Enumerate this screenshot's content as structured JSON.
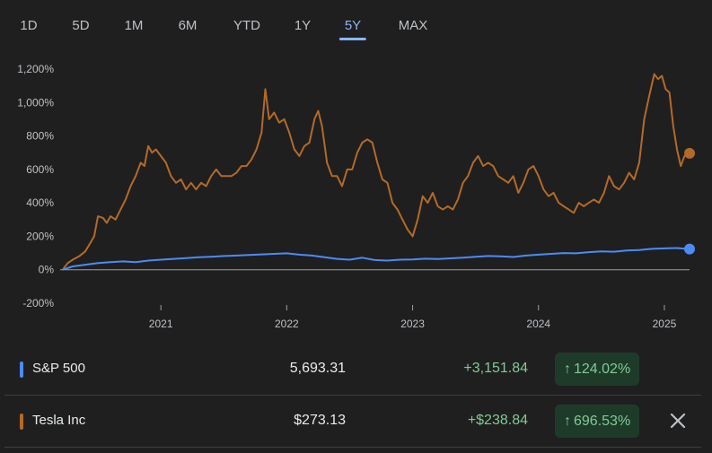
{
  "tabs": [
    "1D",
    "5D",
    "1M",
    "6M",
    "YTD",
    "1Y",
    "5Y",
    "MAX"
  ],
  "active_tab": "5Y",
  "chart_data": {
    "type": "line",
    "x_tick_labels": [
      "2021",
      "2022",
      "2023",
      "2024",
      "2025"
    ],
    "y_tick_labels": [
      "1,200%",
      "1,000%",
      "800%",
      "600%",
      "400%",
      "200%",
      "0%",
      "-200%"
    ],
    "ylim": [
      -200,
      1200
    ],
    "xlim": [
      2020.2,
      2025.2
    ],
    "series": [
      {
        "name": "Tesla Inc",
        "color": "#b36a28",
        "points": [
          [
            2020.22,
            0
          ],
          [
            2020.26,
            40
          ],
          [
            2020.3,
            60
          ],
          [
            2020.35,
            80
          ],
          [
            2020.4,
            110
          ],
          [
            2020.44,
            160
          ],
          [
            2020.47,
            200
          ],
          [
            2020.5,
            320
          ],
          [
            2020.54,
            310
          ],
          [
            2020.57,
            280
          ],
          [
            2020.6,
            320
          ],
          [
            2020.64,
            300
          ],
          [
            2020.68,
            360
          ],
          [
            2020.72,
            420
          ],
          [
            2020.76,
            500
          ],
          [
            2020.8,
            560
          ],
          [
            2020.84,
            640
          ],
          [
            2020.87,
            620
          ],
          [
            2020.9,
            740
          ],
          [
            2020.93,
            700
          ],
          [
            2020.96,
            720
          ],
          [
            2021.0,
            680
          ],
          [
            2021.04,
            640
          ],
          [
            2021.08,
            560
          ],
          [
            2021.12,
            520
          ],
          [
            2021.16,
            540
          ],
          [
            2021.2,
            480
          ],
          [
            2021.24,
            520
          ],
          [
            2021.28,
            480
          ],
          [
            2021.32,
            520
          ],
          [
            2021.36,
            500
          ],
          [
            2021.4,
            560
          ],
          [
            2021.44,
            600
          ],
          [
            2021.48,
            560
          ],
          [
            2021.52,
            560
          ],
          [
            2021.56,
            560
          ],
          [
            2021.6,
            580
          ],
          [
            2021.64,
            620
          ],
          [
            2021.68,
            620
          ],
          [
            2021.72,
            660
          ],
          [
            2021.76,
            720
          ],
          [
            2021.8,
            820
          ],
          [
            2021.83,
            1080
          ],
          [
            2021.86,
            900
          ],
          [
            2021.9,
            940
          ],
          [
            2021.94,
            880
          ],
          [
            2021.98,
            900
          ],
          [
            2022.02,
            820
          ],
          [
            2022.06,
            720
          ],
          [
            2022.1,
            680
          ],
          [
            2022.14,
            740
          ],
          [
            2022.18,
            760
          ],
          [
            2022.22,
            900
          ],
          [
            2022.25,
            950
          ],
          [
            2022.28,
            860
          ],
          [
            2022.32,
            640
          ],
          [
            2022.36,
            560
          ],
          [
            2022.4,
            560
          ],
          [
            2022.44,
            500
          ],
          [
            2022.48,
            600
          ],
          [
            2022.52,
            600
          ],
          [
            2022.56,
            700
          ],
          [
            2022.6,
            760
          ],
          [
            2022.64,
            780
          ],
          [
            2022.68,
            760
          ],
          [
            2022.72,
            640
          ],
          [
            2022.76,
            540
          ],
          [
            2022.8,
            520
          ],
          [
            2022.84,
            400
          ],
          [
            2022.88,
            360
          ],
          [
            2022.92,
            300
          ],
          [
            2022.96,
            240
          ],
          [
            2023.0,
            200
          ],
          [
            2023.04,
            300
          ],
          [
            2023.08,
            440
          ],
          [
            2023.12,
            400
          ],
          [
            2023.16,
            460
          ],
          [
            2023.2,
            380
          ],
          [
            2023.24,
            360
          ],
          [
            2023.28,
            380
          ],
          [
            2023.32,
            360
          ],
          [
            2023.36,
            420
          ],
          [
            2023.4,
            520
          ],
          [
            2023.44,
            560
          ],
          [
            2023.48,
            640
          ],
          [
            2023.52,
            680
          ],
          [
            2023.56,
            620
          ],
          [
            2023.6,
            640
          ],
          [
            2023.64,
            620
          ],
          [
            2023.68,
            560
          ],
          [
            2023.72,
            540
          ],
          [
            2023.76,
            520
          ],
          [
            2023.8,
            560
          ],
          [
            2023.84,
            460
          ],
          [
            2023.88,
            520
          ],
          [
            2023.92,
            600
          ],
          [
            2023.96,
            620
          ],
          [
            2024.0,
            560
          ],
          [
            2024.04,
            480
          ],
          [
            2024.08,
            440
          ],
          [
            2024.12,
            460
          ],
          [
            2024.16,
            400
          ],
          [
            2024.2,
            380
          ],
          [
            2024.24,
            360
          ],
          [
            2024.28,
            340
          ],
          [
            2024.32,
            400
          ],
          [
            2024.36,
            380
          ],
          [
            2024.4,
            400
          ],
          [
            2024.44,
            420
          ],
          [
            2024.48,
            400
          ],
          [
            2024.52,
            460
          ],
          [
            2024.56,
            560
          ],
          [
            2024.6,
            500
          ],
          [
            2024.64,
            480
          ],
          [
            2024.68,
            520
          ],
          [
            2024.72,
            580
          ],
          [
            2024.76,
            540
          ],
          [
            2024.8,
            640
          ],
          [
            2024.84,
            900
          ],
          [
            2024.88,
            1040
          ],
          [
            2024.92,
            1170
          ],
          [
            2024.95,
            1140
          ],
          [
            2024.98,
            1160
          ],
          [
            2025.01,
            1080
          ],
          [
            2025.04,
            1060
          ],
          [
            2025.07,
            860
          ],
          [
            2025.1,
            720
          ],
          [
            2025.13,
            620
          ],
          [
            2025.16,
            680
          ],
          [
            2025.2,
            696.53
          ]
        ]
      },
      {
        "name": "S&P 500",
        "color": "#4c8bf5",
        "points": [
          [
            2020.22,
            0
          ],
          [
            2020.3,
            20
          ],
          [
            2020.4,
            30
          ],
          [
            2020.5,
            40
          ],
          [
            2020.6,
            45
          ],
          [
            2020.7,
            50
          ],
          [
            2020.8,
            45
          ],
          [
            2020.9,
            55
          ],
          [
            2021.0,
            60
          ],
          [
            2021.1,
            65
          ],
          [
            2021.2,
            70
          ],
          [
            2021.3,
            75
          ],
          [
            2021.4,
            78
          ],
          [
            2021.5,
            82
          ],
          [
            2021.6,
            85
          ],
          [
            2021.7,
            88
          ],
          [
            2021.8,
            92
          ],
          [
            2021.9,
            95
          ],
          [
            2022.0,
            98
          ],
          [
            2022.1,
            90
          ],
          [
            2022.2,
            85
          ],
          [
            2022.3,
            75
          ],
          [
            2022.4,
            65
          ],
          [
            2022.5,
            60
          ],
          [
            2022.6,
            72
          ],
          [
            2022.7,
            58
          ],
          [
            2022.8,
            55
          ],
          [
            2022.9,
            60
          ],
          [
            2023.0,
            62
          ],
          [
            2023.1,
            66
          ],
          [
            2023.2,
            64
          ],
          [
            2023.3,
            68
          ],
          [
            2023.4,
            72
          ],
          [
            2023.5,
            78
          ],
          [
            2023.6,
            82
          ],
          [
            2023.7,
            80
          ],
          [
            2023.8,
            76
          ],
          [
            2023.9,
            85
          ],
          [
            2024.0,
            90
          ],
          [
            2024.1,
            95
          ],
          [
            2024.2,
            100
          ],
          [
            2024.3,
            98
          ],
          [
            2024.4,
            105
          ],
          [
            2024.5,
            110
          ],
          [
            2024.6,
            108
          ],
          [
            2024.7,
            115
          ],
          [
            2024.8,
            118
          ],
          [
            2024.9,
            125
          ],
          [
            2025.0,
            128
          ],
          [
            2025.1,
            130
          ],
          [
            2025.2,
            124.02
          ]
        ]
      }
    ]
  },
  "rows": [
    {
      "name": "S&P 500",
      "price": "5,693.31",
      "change": "+3,151.84",
      "percent": "124.02%",
      "color": "#4c8bf5",
      "removable": false
    },
    {
      "name": "Tesla Inc",
      "price": "$273.13",
      "change": "+$238.84",
      "percent": "696.53%",
      "color": "#b36a28",
      "removable": true
    }
  ]
}
